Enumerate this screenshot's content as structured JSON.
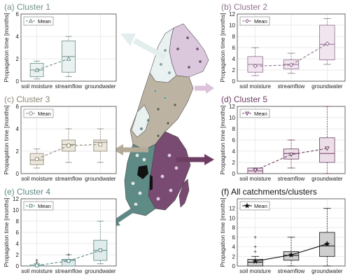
{
  "figure": {
    "ylabel": "Propagation time [months]",
    "categories": [
      "soil moisture",
      "streamflow",
      "groundwater"
    ]
  },
  "chart_data": [
    {
      "id": "a",
      "type": "box",
      "title": "(a) Cluster 1",
      "color": "#6f8f8c",
      "fill": "#e9f1f1",
      "marker": "triangle",
      "legend": "Mean",
      "ylim": [
        0,
        6
      ],
      "yticks": [
        0,
        2,
        4,
        6
      ],
      "categories": [
        "soil moisture",
        "streamflow",
        "groundwater"
      ],
      "boxes": [
        {
          "q1": 0.4,
          "median": 1.0,
          "q3": 1.6,
          "wlo": 0.2,
          "whi": 1.8,
          "mean": 1.0
        },
        {
          "q1": 0.8,
          "median": 2.2,
          "q3": 3.6,
          "wlo": 0.4,
          "whi": 4.0,
          "mean": 2.0
        },
        null
      ]
    },
    {
      "id": "b",
      "type": "box",
      "title": "(b) Cluster 2",
      "color": "#8f7090",
      "fill": "#f1e6f0",
      "marker": "diamond",
      "legend": "Mean",
      "ylim": [
        0,
        12
      ],
      "yticks": [
        0,
        2,
        4,
        6,
        8,
        10,
        12
      ],
      "categories": [
        "soil moisture",
        "streamflow",
        "groundwater"
      ],
      "boxes": [
        {
          "q1": 1.6,
          "median": 3.0,
          "q3": 4.4,
          "wlo": 1.0,
          "whi": 6.0,
          "mean": 2.7
        },
        {
          "q1": 2.2,
          "median": 3.0,
          "q3": 3.8,
          "wlo": 1.4,
          "whi": 5.0,
          "mean": 2.9
        },
        {
          "q1": 3.8,
          "median": 6.6,
          "q3": 10.0,
          "wlo": 3.0,
          "whi": 11.2,
          "mean": 6.7
        }
      ]
    },
    {
      "id": "c",
      "type": "box",
      "title": "(c) Cluster 3",
      "color": "#8f8675",
      "fill": "#ece7dd",
      "marker": "circle",
      "legend": "Mean",
      "ylim": [
        0,
        6
      ],
      "yticks": [
        0,
        2,
        4,
        6
      ],
      "categories": [
        "soil moisture",
        "streamflow",
        "groundwater"
      ],
      "boxes": [
        {
          "q1": 0.8,
          "median": 1.2,
          "q3": 1.8,
          "wlo": 0.5,
          "whi": 2.2,
          "mean": 1.3
        },
        {
          "q1": 2.0,
          "median": 2.6,
          "q3": 3.0,
          "wlo": 1.0,
          "whi": 4.0,
          "mean": 2.5
        },
        {
          "q1": 2.0,
          "median": 2.8,
          "q3": 3.0,
          "wlo": 1.0,
          "whi": 4.0,
          "mean": 2.6
        }
      ]
    },
    {
      "id": "d",
      "type": "box",
      "title": "(d) Cluster 5",
      "color": "#6d3d63",
      "fill": "#ecdfe8",
      "marker": "triangle-down",
      "legend": "Mean",
      "ylim": [
        0,
        12
      ],
      "yticks": [
        0,
        2,
        4,
        6,
        8,
        10,
        12
      ],
      "categories": [
        "soil moisture",
        "streamflow",
        "groundwater"
      ],
      "boxes": [
        {
          "q1": 0.0,
          "median": 0.5,
          "q3": 1.0,
          "wlo": 0.0,
          "whi": 1.0,
          "mean": 0.6
        },
        {
          "q1": 2.6,
          "median": 3.6,
          "q3": 4.4,
          "wlo": 1.0,
          "whi": 6.0,
          "mean": 3.4
        },
        {
          "q1": 2.0,
          "median": 3.6,
          "q3": 6.4,
          "wlo": 0.0,
          "whi": 12.0,
          "mean": 4.5
        }
      ]
    },
    {
      "id": "e",
      "type": "box",
      "title": "(e) Cluster 4",
      "color": "#5e8884",
      "fill": "#dfeceb",
      "marker": "square",
      "legend": "Mean",
      "ylim": [
        0,
        12
      ],
      "yticks": [
        0,
        2,
        4,
        6,
        8,
        10,
        12
      ],
      "categories": [
        "soil moisture",
        "streamflow",
        "groundwater"
      ],
      "boxes": [
        {
          "q1": 0.0,
          "median": 0.0,
          "q3": 0.2,
          "wlo": 0.0,
          "whi": 0.4,
          "mean": 0.1,
          "outliers": [
            0.6,
            1.0
          ]
        },
        {
          "q1": 0.0,
          "median": 1.0,
          "q3": 1.2,
          "wlo": 0.0,
          "whi": 2.0,
          "mean": 0.9,
          "outliers": [
            2.0
          ]
        },
        {
          "q1": 1.0,
          "median": 2.8,
          "q3": 4.6,
          "wlo": 0.4,
          "whi": 8.0,
          "mean": 2.8
        }
      ]
    },
    {
      "id": "f",
      "type": "box",
      "title": "(f) All catchments/clusters",
      "color": "#111111",
      "fill": "#cfcfcf",
      "marker": "star",
      "legend": "Mean",
      "line_style": "solid",
      "ylim": [
        0,
        14
      ],
      "yticks": [
        0,
        2,
        4,
        6,
        8,
        10,
        12
      ],
      "categories": [
        "soil moisture",
        "streamflow",
        "groundwater"
      ],
      "boxes": [
        {
          "q1": 0.0,
          "median": 0.8,
          "q3": 1.4,
          "wlo": 0.0,
          "whi": 2.0,
          "mean": 1.0,
          "outliers": [
            3.0,
            4.0,
            6.0
          ]
        },
        {
          "q1": 1.2,
          "median": 2.2,
          "q3": 3.0,
          "wlo": 0.0,
          "whi": 6.0,
          "mean": 2.3
        },
        {
          "q1": 2.0,
          "median": 4.2,
          "q3": 7.0,
          "wlo": 0.0,
          "whi": 12.0,
          "mean": 4.6
        }
      ]
    }
  ],
  "map": {
    "region_colors": {
      "cluster1": "#e9f1f1",
      "cluster2": "#dcc8dc",
      "cluster3": "#bdb3a2",
      "cluster4": "#5f8b86",
      "cluster5": "#7a4b72"
    }
  }
}
